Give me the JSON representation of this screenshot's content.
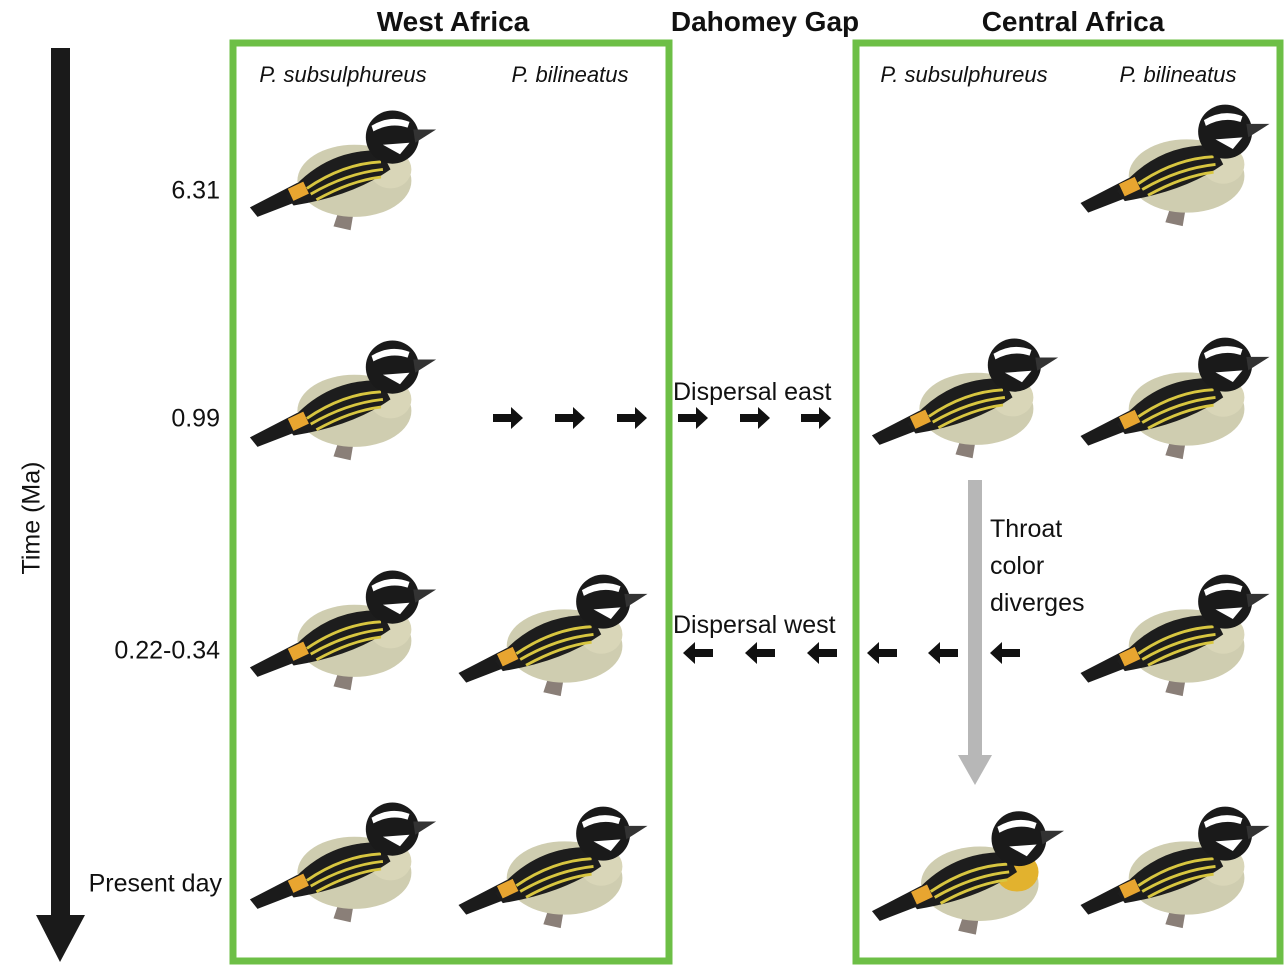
{
  "regions": [
    {
      "name": "West Africa",
      "species": [
        "P. subsulphureus",
        "P. bilineatus"
      ]
    },
    {
      "name": "Dahomey Gap"
    },
    {
      "name": "Central Africa",
      "species": [
        "P. subsulphureus",
        "P. bilineatus"
      ]
    }
  ],
  "time_axis": {
    "label": "Time (Ma)",
    "ticks": [
      "6.31",
      "0.99",
      "0.22-0.34",
      "Present day"
    ]
  },
  "annotations": {
    "dispersal_east": "Dispersal east",
    "dispersal_west": "Dispersal west",
    "throat": [
      "Throat",
      "color",
      "diverges"
    ]
  }
}
